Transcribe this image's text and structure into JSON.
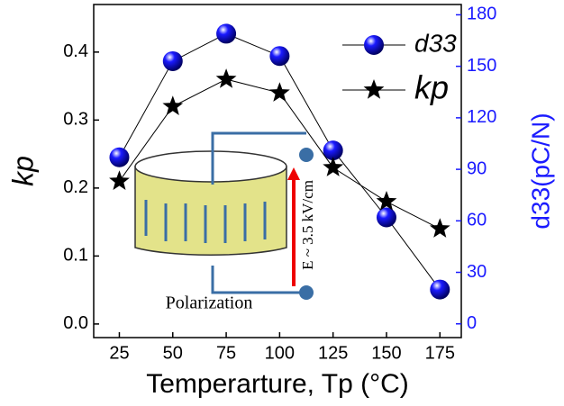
{
  "chart_data": {
    "type": "line",
    "x_label": "Temperarture, Tp (°C)",
    "y_label": "kp",
    "y2_label": "d33(pC/N)",
    "x": [
      25,
      50,
      75,
      100,
      125,
      150,
      175
    ],
    "series": [
      {
        "name": "d33",
        "color": "#1a1aff",
        "axis": "y2",
        "marker": "sphere",
        "values": [
          97,
          153,
          169,
          156,
          101,
          62,
          20
        ]
      },
      {
        "name": "kp",
        "color": "#000000",
        "marker": "star",
        "values": [
          0.21,
          0.32,
          0.36,
          0.34,
          0.23,
          0.18,
          0.14
        ]
      }
    ],
    "xlim": [
      13,
      185
    ],
    "xticks": [
      25,
      50,
      75,
      100,
      125,
      150,
      175
    ],
    "ylim": [
      -0.02,
      0.47
    ],
    "yticks": [
      {
        "value": 0,
        "label": "0.0"
      },
      0.1,
      0.2,
      0.3,
      0.4
    ],
    "y2lim": [
      -8,
      186
    ],
    "y2ticks": [
      0,
      30,
      60,
      90,
      120,
      150,
      180
    ],
    "y2_color": "#1a1aff",
    "legend": "upper right",
    "annotations": [
      "Polarization",
      "E ~ 3.5 kV/cm"
    ]
  }
}
